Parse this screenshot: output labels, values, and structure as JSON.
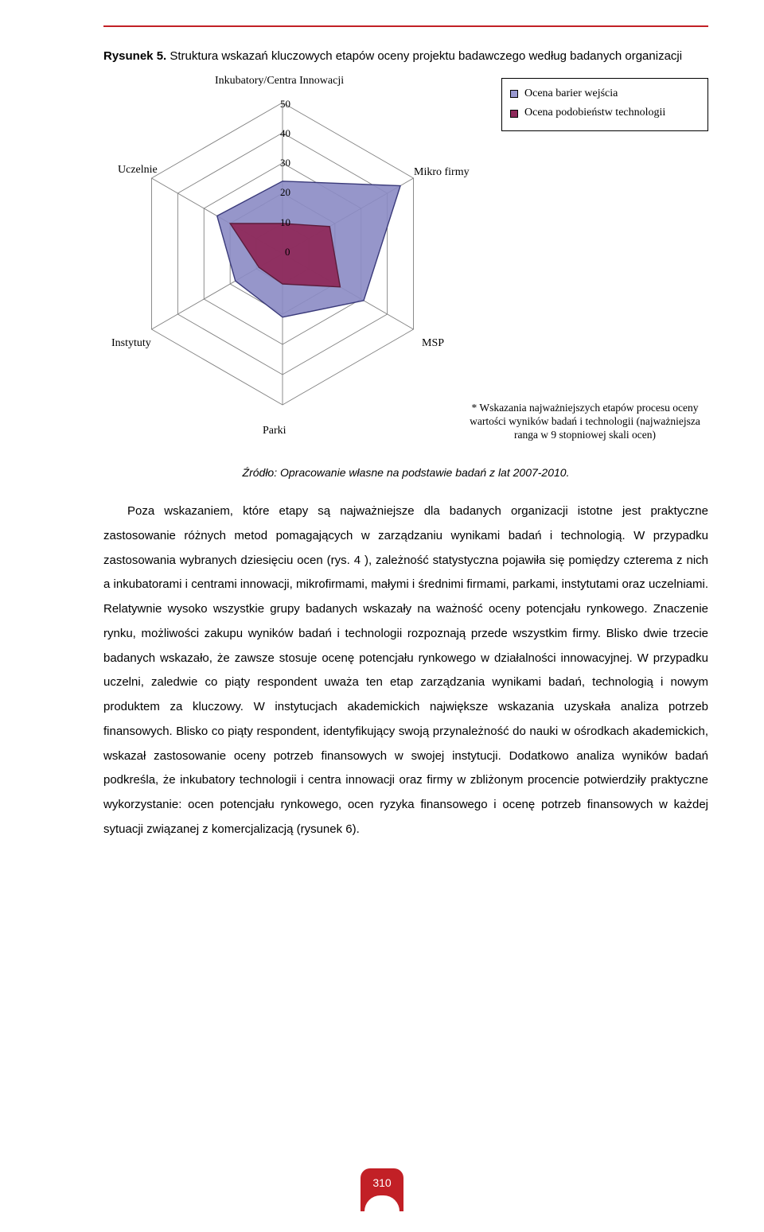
{
  "figure": {
    "label": "Rysunek 5.",
    "caption_rest": " Struktura wskazań kluczowych etapów oceny projektu badawczego według badanych organizacji"
  },
  "chart": {
    "type": "radar",
    "axes": [
      "Inkubatory/Centra Innowacji",
      "Mikro firmy",
      "MSP",
      "Parki",
      "Instytuty",
      "Uczelnie"
    ],
    "ticks": [
      0,
      10,
      20,
      30,
      40,
      50
    ],
    "max": 50,
    "series": [
      {
        "name": "Ocena barier wejścia",
        "color": "#8b8bc4",
        "border": "#3a3a7a",
        "values": [
          24,
          45,
          31,
          21,
          18,
          25
        ]
      },
      {
        "name": "Ocena podobieństw technologii",
        "color": "#8e2a5b",
        "border": "#5b1c3b",
        "values": [
          10,
          18,
          22,
          10,
          9,
          20
        ]
      }
    ],
    "grid_color": "#808080",
    "grid_width": 0.9,
    "background": "#ffffff",
    "swatch_colors": [
      "#9a9ad1",
      "#8e2a5b"
    ],
    "footnote": "* Wskazania najważniejszych etapów procesu oceny wartości wyników badań i technologii (najważniejsza ranga w 9 stopniowej skali ocen)"
  },
  "source_line": "Źródło: Opracowanie własne na podstawie badań z lat 2007-2010.",
  "body": "Poza wskazaniem, które etapy są najważniejsze dla badanych organizacji istotne jest praktyczne zastosowanie różnych metod pomagających w zarządzaniu wynikami badań i technologią. W przypadku zastosowania wybranych dziesięciu ocen (rys. 4 ), zależność statystyczna pojawiła się pomiędzy czterema z nich a inkubatorami i centrami innowacji, mikrofirmami, małymi i średnimi firmami, parkami, instytutami oraz uczelniami. Relatywnie wysoko wszystkie grupy badanych wskazały na ważność oceny potencjału rynkowego. Znaczenie rynku, możliwości zakupu wyników badań i technologii rozpoznają przede wszystkim firmy. Blisko dwie trzecie badanych wskazało, że zawsze stosuje ocenę potencjału rynkowego w działalności innowacyjnej. W przypadku uczelni, zaledwie co piąty respondent uważa ten etap zarządzania wynikami badań, technologią i nowym produktem za kluczowy. W instytucjach akademickich największe wskazania uzyskała analiza potrzeb finansowych. Blisko co piąty respondent, identyfikujący swoją przynależność do nauki w ośrodkach akademickich, wskazał zastosowanie oceny potrzeb finansowych w swojej instytucji. Dodatkowo analiza wyników badań podkreśla, że inkubatory technologii i centra innowacji oraz firmy w zbliżonym procencie potwierdziły praktyczne wykorzystanie: ocen potencjału rynkowego, ocen ryzyka finansowego i ocenę potrzeb finansowych w każdej sytuacji związanej z komercjalizacją (rysunek 6).",
  "page_number": "310"
}
